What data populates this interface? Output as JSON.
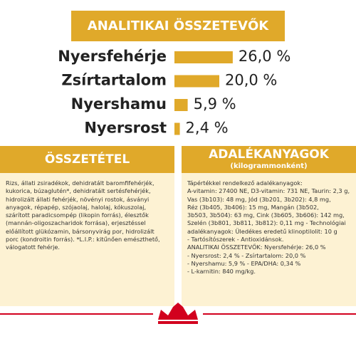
{
  "header": {
    "title": "ANALITIKAI ÖSSZETEVŐK"
  },
  "nutrients": [
    {
      "label": "Nyersfehérje",
      "value": 26.0,
      "value_label": "26,0 %"
    },
    {
      "label": "Zsírtartalom",
      "value": 20.0,
      "value_label": "20,0 %"
    },
    {
      "label": "Nyershamu",
      "value": 5.9,
      "value_label": "5,9 %"
    },
    {
      "label": "Nyersrost",
      "value": 2.4,
      "value_label": "2,4 %"
    }
  ],
  "composition": {
    "title": "ÖSSZETÉTEL",
    "text": "Rizs, állati zsiradékok, dehidratált baromfifehérjék, kukorica, búzaglutén*, dehidratált sertésfehérjék, hidrolizált állati fehérjék, növényi rostok, ásványi anyagok, répapép, szójaolaj, halolaj, kókuszolaj, szárított paradicsompép (likopin forrás), élesztők (mannán-oligoszacharidok forrása), erjesztéssel előállított glükózamin, bársonyvirág por, hidrolizált porc (kondroitin forrás). *L.I.P.: kitűnően emészthető, válogatott fehérje."
  },
  "additives": {
    "title": "ADALÉKANYAGOK",
    "subtitle": "(kilogrammonként)",
    "lines": [
      "Tápértékkel rendelkező adalékanyagok:",
      "A-vitamin: 27400 NE, D3-vitamin: 731 NE, Taurin: 2,3 g,",
      "Vas (3b103): 48 mg, Jód (3b201, 3b202): 4,8 mg,",
      "Réz (3b405, 3b406): 15 mg, Mangán (3b502,",
      "3b503, 3b504): 63 mg, Cink (3b605, 3b606): 142 mg,",
      "Szelén (3b801, 3b811, 3b812): 0,11 mg - Technológiai",
      "adalékanyagok: Üledékes eredetű klinoptilolit: 10 g",
      "- Tartósítószerek - Antioxidánsok.",
      "ANALITIKAI ÖSSZETEVŐK: Nyersfehérje: 26,0 %",
      "- Nyersrost: 2,4 % - Zsírtartalom: 20,0 %",
      "- Nyershamu: 5,9 % - EPA/DHA: 0,34 %",
      "- L-karnitin: 840 mg/kg."
    ]
  }
}
